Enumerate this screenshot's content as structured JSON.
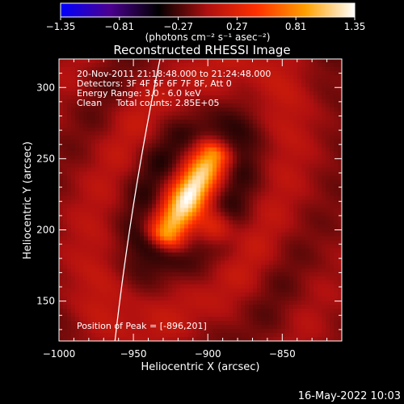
{
  "chart_data": {
    "type": "heatmap",
    "title": "Reconstructed RHESSI Image",
    "xlabel": "Heliocentric X (arcsec)",
    "ylabel": "Heliocentric Y (arcsec)",
    "xlim": [
      -1000,
      -810
    ],
    "ylim": [
      122,
      320
    ],
    "x_ticks": [
      -1000,
      -950,
      -900,
      -850
    ],
    "x_tick_labels": [
      "−1000",
      "−950",
      "−900",
      "−850"
    ],
    "y_ticks": [
      150,
      200,
      250,
      300
    ],
    "y_tick_labels": [
      "150",
      "200",
      "250",
      "300"
    ],
    "colorbar": {
      "min": -1.35,
      "max": 1.35,
      "ticks": [
        -1.35,
        -0.81,
        -0.27,
        0.27,
        0.81,
        1.35
      ],
      "tick_labels": [
        "−1.35",
        "−0.81",
        "−0.27",
        "0.27",
        "0.81",
        "1.35"
      ],
      "units_label": "(photons cm⁻² s⁻¹ asec⁻²)",
      "colormap": [
        "#0000ff",
        "#4b0090",
        "#000000",
        "#b01010",
        "#ff3000",
        "#ffa000",
        "#ffffff"
      ]
    },
    "annotations": [
      "20-Nov-2011 21:18:48.000 to 21:24:48.000",
      "Detectors: 3F 4F 5F 6F 7F 8F, Att 0",
      "Energy Range: 3.0 - 6.0 keV",
      "Clean     Total counts: 2.85E+05"
    ],
    "peak_label": "Position of Peak = [-896,201]",
    "peak": {
      "x": -896,
      "y": 201,
      "value": 1.35
    },
    "source": {
      "center": [
        -912,
        225
      ],
      "axis_angle_deg": 60,
      "half_length_arcsec": 32,
      "half_width_arcsec": 14
    },
    "limb": {
      "x_at_ymin": -963,
      "x_at_ymax": -931
    },
    "grid": false,
    "legend": "none"
  },
  "footer": {
    "date_stamp": "16-May-2022 10:03"
  }
}
